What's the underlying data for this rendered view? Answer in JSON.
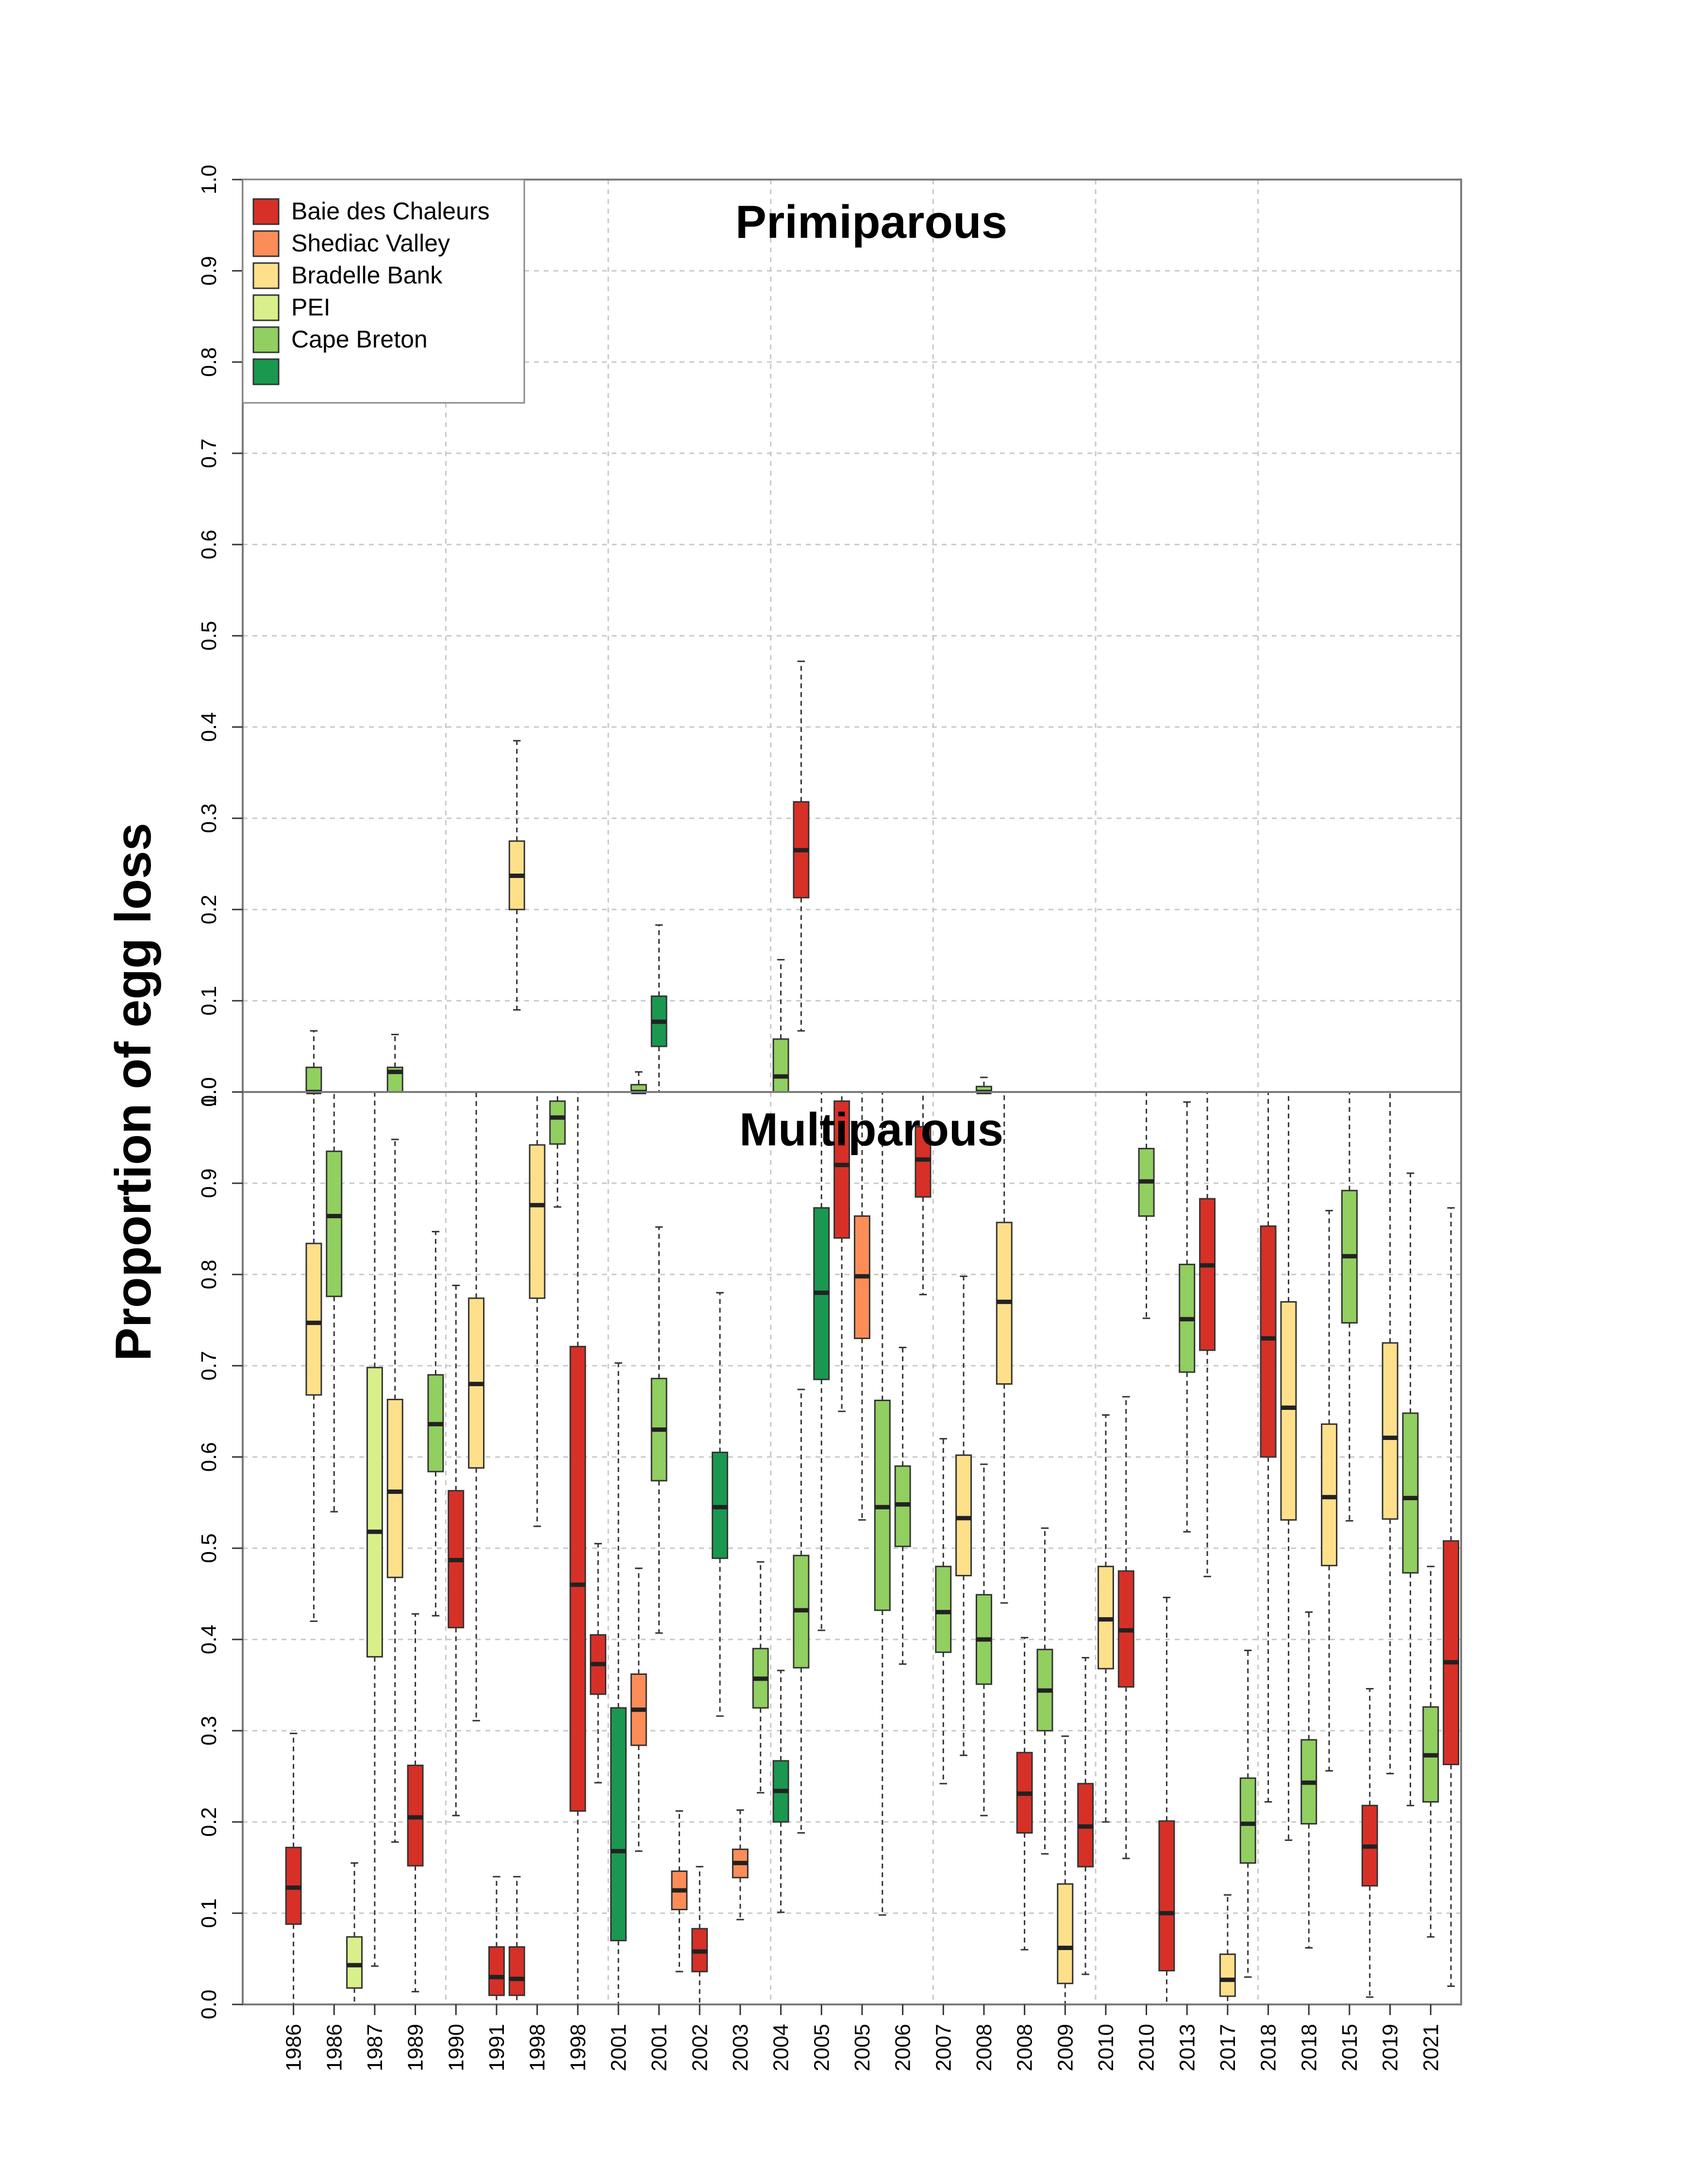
{
  "chart_data": {
    "type": "boxplot",
    "ylabel": "Proportion of egg loss",
    "ylim": [
      0,
      1
    ],
    "yticks": [
      "0.0",
      "0.1",
      "0.2",
      "0.3",
      "0.4",
      "0.5",
      "0.6",
      "0.7",
      "0.8",
      "0.9",
      "1.0"
    ],
    "x_labels": [
      "1986",
      "1986",
      "1987",
      "1989",
      "1990",
      "1991",
      "1998",
      "1998",
      "2001",
      "2001",
      "2002",
      "2003",
      "2004",
      "2005",
      "2005",
      "2006",
      "2007",
      "2008",
      "2008",
      "2009",
      "2010",
      "2010",
      "2013",
      "2017",
      "2018",
      "2018",
      "2015",
      "2019",
      "2021"
    ],
    "legend": {
      "placement": "top-left",
      "entries": [
        {
          "label": "Baie des Chaleurs",
          "color": "#d73027"
        },
        {
          "label": "Shediac Valley",
          "color": "#fc8d59"
        },
        {
          "label": "Bradelle Bank",
          "color": "#fee08b"
        },
        {
          "label": "PEI",
          "color": "#d9ef8b"
        },
        {
          "label": "Cape Breton",
          "color": "#91cf60"
        },
        {
          "label": "",
          "color": "#1a9850"
        }
      ]
    },
    "panels": [
      {
        "title": "Primiparous",
        "boxes": [
          {
            "x": 3,
            "color": "#91cf60",
            "min": 0,
            "q1": 0,
            "median": 0.0,
            "q3": 0.027,
            "max": 0.067
          },
          {
            "x": 7,
            "color": "#91cf60",
            "min": 0,
            "q1": 0,
            "median": 0.022,
            "q3": 0.027,
            "max": 0.063
          },
          {
            "x": 13,
            "color": "#fee08b",
            "min": 0.09,
            "q1": 0.2,
            "median": 0.237,
            "q3": 0.275,
            "max": 0.385
          },
          {
            "x": 19,
            "color": "#91cf60",
            "min": 0,
            "q1": 0,
            "median": 0.0,
            "q3": 0.008,
            "max": 0.022
          },
          {
            "x": 20,
            "color": "#1a9850",
            "min": 0,
            "q1": 0.05,
            "median": 0.077,
            "q3": 0.105,
            "max": 0.183
          },
          {
            "x": 26,
            "color": "#91cf60",
            "min": 0,
            "q1": 0,
            "median": 0.017,
            "q3": 0.058,
            "max": 0.145
          },
          {
            "x": 27,
            "color": "#d73027",
            "min": 0.067,
            "q1": 0.213,
            "median": 0.265,
            "q3": 0.318,
            "max": 0.472
          },
          {
            "x": 36,
            "color": "#91cf60",
            "min": 0,
            "q1": 0,
            "median": 0.0,
            "q3": 0.006,
            "max": 0.016
          }
        ]
      },
      {
        "title": "Multiparous",
        "boxes": [
          {
            "x": 2,
            "color": "#d73027",
            "min": 0,
            "q1": 0.088,
            "median": 0.128,
            "q3": 0.172,
            "max": 0.297
          },
          {
            "x": 3,
            "color": "#fee08b",
            "min": 0.42,
            "q1": 0.668,
            "median": 0.747,
            "q3": 0.834,
            "max": 1.0
          },
          {
            "x": 4,
            "color": "#91cf60",
            "min": 0.54,
            "q1": 0.776,
            "median": 0.864,
            "q3": 0.935,
            "max": 1.0
          },
          {
            "x": 5,
            "color": "#d9ef8b",
            "min": 0,
            "q1": 0.018,
            "median": 0.043,
            "q3": 0.074,
            "max": 0.155
          },
          {
            "x": 6,
            "color": "#d9ef8b",
            "min": 0.042,
            "q1": 0.381,
            "median": 0.518,
            "q3": 0.698,
            "max": 1.0
          },
          {
            "x": 7,
            "color": "#fee08b",
            "min": 0.178,
            "q1": 0.468,
            "median": 0.562,
            "q3": 0.663,
            "max": 0.948
          },
          {
            "x": 8,
            "color": "#d73027",
            "min": 0.014,
            "q1": 0.152,
            "median": 0.205,
            "q3": 0.262,
            "max": 0.428
          },
          {
            "x": 9,
            "color": "#91cf60",
            "min": 0.426,
            "q1": 0.584,
            "median": 0.636,
            "q3": 0.69,
            "max": 0.847
          },
          {
            "x": 10,
            "color": "#d73027",
            "min": 0.207,
            "q1": 0.413,
            "median": 0.487,
            "q3": 0.563,
            "max": 0.788
          },
          {
            "x": 11,
            "color": "#fee08b",
            "min": 0.311,
            "q1": 0.588,
            "median": 0.68,
            "q3": 0.774,
            "max": 1.0
          },
          {
            "x": 12,
            "color": "#d73027",
            "min": 0,
            "q1": 0.01,
            "median": 0.03,
            "q3": 0.063,
            "max": 0.14
          },
          {
            "x": 13,
            "color": "#d73027",
            "min": 0,
            "q1": 0.01,
            "median": 0.028,
            "q3": 0.063,
            "max": 0.14
          },
          {
            "x": 14,
            "color": "#fee08b",
            "min": 0.524,
            "q1": 0.774,
            "median": 0.876,
            "q3": 0.942,
            "max": 1.0
          },
          {
            "x": 15,
            "color": "#91cf60",
            "min": 0.874,
            "q1": 0.943,
            "median": 0.972,
            "q3": 0.99,
            "max": 1.0
          },
          {
            "x": 16,
            "color": "#d73027",
            "min": 0,
            "q1": 0.212,
            "median": 0.46,
            "q3": 0.721,
            "max": 1.0
          },
          {
            "x": 17,
            "color": "#d73027",
            "min": 0.243,
            "q1": 0.34,
            "median": 0.373,
            "q3": 0.405,
            "max": 0.505
          },
          {
            "x": 18,
            "color": "#1a9850",
            "min": 0,
            "q1": 0.07,
            "median": 0.168,
            "q3": 0.325,
            "max": 0.703
          },
          {
            "x": 19,
            "color": "#fc8d59",
            "min": 0.168,
            "q1": 0.284,
            "median": 0.323,
            "q3": 0.362,
            "max": 0.478
          },
          {
            "x": 20,
            "color": "#91cf60",
            "min": 0.407,
            "q1": 0.574,
            "median": 0.63,
            "q3": 0.686,
            "max": 0.852
          },
          {
            "x": 21,
            "color": "#fc8d59",
            "min": 0.036,
            "q1": 0.104,
            "median": 0.125,
            "q3": 0.146,
            "max": 0.212
          },
          {
            "x": 22,
            "color": "#d73027",
            "min": 0,
            "q1": 0.036,
            "median": 0.058,
            "q3": 0.083,
            "max": 0.151
          },
          {
            "x": 23,
            "color": "#1a9850",
            "min": 0.316,
            "q1": 0.489,
            "median": 0.545,
            "q3": 0.605,
            "max": 0.78
          },
          {
            "x": 24,
            "color": "#fc8d59",
            "min": 0.093,
            "q1": 0.139,
            "median": 0.155,
            "q3": 0.17,
            "max": 0.213
          },
          {
            "x": 25,
            "color": "#91cf60",
            "min": 0.232,
            "q1": 0.325,
            "median": 0.357,
            "q3": 0.39,
            "max": 0.485
          },
          {
            "x": 26,
            "color": "#1a9850",
            "min": 0.101,
            "q1": 0.2,
            "median": 0.234,
            "q3": 0.267,
            "max": 0.366
          },
          {
            "x": 27,
            "color": "#91cf60",
            "min": 0.188,
            "q1": 0.369,
            "median": 0.432,
            "q3": 0.492,
            "max": 0.674
          },
          {
            "x": 28,
            "color": "#1a9850",
            "min": 0.41,
            "q1": 0.685,
            "median": 0.78,
            "q3": 0.873,
            "max": 1.0
          },
          {
            "x": 29,
            "color": "#d73027",
            "min": 0.65,
            "q1": 0.84,
            "median": 0.92,
            "q3": 0.99,
            "max": 1.0
          },
          {
            "x": 30,
            "color": "#fc8d59",
            "min": 0.531,
            "q1": 0.73,
            "median": 0.798,
            "q3": 0.864,
            "max": 1.0
          },
          {
            "x": 31,
            "color": "#91cf60",
            "min": 0.098,
            "q1": 0.432,
            "median": 0.545,
            "q3": 0.662,
            "max": 1.0
          },
          {
            "x": 32,
            "color": "#91cf60",
            "min": 0.373,
            "q1": 0.502,
            "median": 0.548,
            "q3": 0.59,
            "max": 0.72
          },
          {
            "x": 33,
            "color": "#d73027",
            "min": 0.778,
            "q1": 0.885,
            "median": 0.926,
            "q3": 0.962,
            "max": 1.0
          },
          {
            "x": 34,
            "color": "#91cf60",
            "min": 0.242,
            "q1": 0.386,
            "median": 0.43,
            "q3": 0.48,
            "max": 0.62
          },
          {
            "x": 35,
            "color": "#fee08b",
            "min": 0.273,
            "q1": 0.47,
            "median": 0.533,
            "q3": 0.602,
            "max": 0.798
          },
          {
            "x": 36,
            "color": "#91cf60",
            "min": 0.207,
            "q1": 0.351,
            "median": 0.4,
            "q3": 0.449,
            "max": 0.592
          },
          {
            "x": 37,
            "color": "#fee08b",
            "min": 0.44,
            "q1": 0.68,
            "median": 0.77,
            "q3": 0.857,
            "max": 1.0
          },
          {
            "x": 38,
            "color": "#d73027",
            "min": 0.06,
            "q1": 0.188,
            "median": 0.231,
            "q3": 0.276,
            "max": 0.402
          },
          {
            "x": 39,
            "color": "#91cf60",
            "min": 0.165,
            "q1": 0.3,
            "median": 0.344,
            "q3": 0.389,
            "max": 0.522
          },
          {
            "x": 40,
            "color": "#fee08b",
            "min": 0,
            "q1": 0.023,
            "median": 0.062,
            "q3": 0.132,
            "max": 0.294
          },
          {
            "x": 41,
            "color": "#d73027",
            "min": 0.033,
            "q1": 0.151,
            "median": 0.195,
            "q3": 0.242,
            "max": 0.38
          },
          {
            "x": 42,
            "color": "#fee08b",
            "min": 0.2,
            "q1": 0.368,
            "median": 0.422,
            "q3": 0.48,
            "max": 0.646
          },
          {
            "x": 43,
            "color": "#d73027",
            "min": 0.16,
            "q1": 0.348,
            "median": 0.41,
            "q3": 0.475,
            "max": 0.666
          },
          {
            "x": 44,
            "color": "#91cf60",
            "min": 0.752,
            "q1": 0.864,
            "median": 0.902,
            "q3": 0.938,
            "max": 1.0
          },
          {
            "x": 45,
            "color": "#d73027",
            "min": 0,
            "q1": 0.037,
            "median": 0.1,
            "q3": 0.201,
            "max": 0.446
          },
          {
            "x": 46,
            "color": "#91cf60",
            "min": 0.518,
            "q1": 0.693,
            "median": 0.751,
            "q3": 0.811,
            "max": 0.989
          },
          {
            "x": 47,
            "color": "#d73027",
            "min": 0.469,
            "q1": 0.717,
            "median": 0.81,
            "q3": 0.883,
            "max": 1.0
          },
          {
            "x": 48,
            "color": "#fee08b",
            "min": 0,
            "q1": 0.009,
            "median": 0.027,
            "q3": 0.055,
            "max": 0.12
          },
          {
            "x": 49,
            "color": "#91cf60",
            "min": 0.03,
            "q1": 0.155,
            "median": 0.198,
            "q3": 0.248,
            "max": 0.388
          },
          {
            "x": 50,
            "color": "#d73027",
            "min": 0.222,
            "q1": 0.6,
            "median": 0.73,
            "q3": 0.853,
            "max": 1.0
          },
          {
            "x": 51,
            "color": "#fee08b",
            "min": 0.18,
            "q1": 0.531,
            "median": 0.654,
            "q3": 0.77,
            "max": 1.0
          },
          {
            "x": 52,
            "color": "#91cf60",
            "min": 0.062,
            "q1": 0.198,
            "median": 0.243,
            "q3": 0.29,
            "max": 0.43
          },
          {
            "x": 53,
            "color": "#fee08b",
            "min": 0.256,
            "q1": 0.481,
            "median": 0.556,
            "q3": 0.636,
            "max": 0.87
          },
          {
            "x": 54,
            "color": "#91cf60",
            "min": 0.53,
            "q1": 0.747,
            "median": 0.82,
            "q3": 0.892,
            "max": 1.0
          },
          {
            "x": 55,
            "color": "#d73027",
            "min": 0.008,
            "q1": 0.13,
            "median": 0.173,
            "q3": 0.218,
            "max": 0.346
          },
          {
            "x": 56,
            "color": "#fee08b",
            "min": 0.253,
            "q1": 0.532,
            "median": 0.621,
            "q3": 0.725,
            "max": 1.0
          },
          {
            "x": 57,
            "color": "#91cf60",
            "min": 0.218,
            "q1": 0.473,
            "median": 0.555,
            "q3": 0.648,
            "max": 0.911
          },
          {
            "x": 58,
            "color": "#91cf60",
            "min": 0.074,
            "q1": 0.222,
            "median": 0.273,
            "q3": 0.326,
            "max": 0.48
          },
          {
            "x": 59,
            "color": "#d73027",
            "min": 0.02,
            "q1": 0.263,
            "median": 0.375,
            "q3": 0.508,
            "max": 0.873
          }
        ]
      }
    ]
  }
}
